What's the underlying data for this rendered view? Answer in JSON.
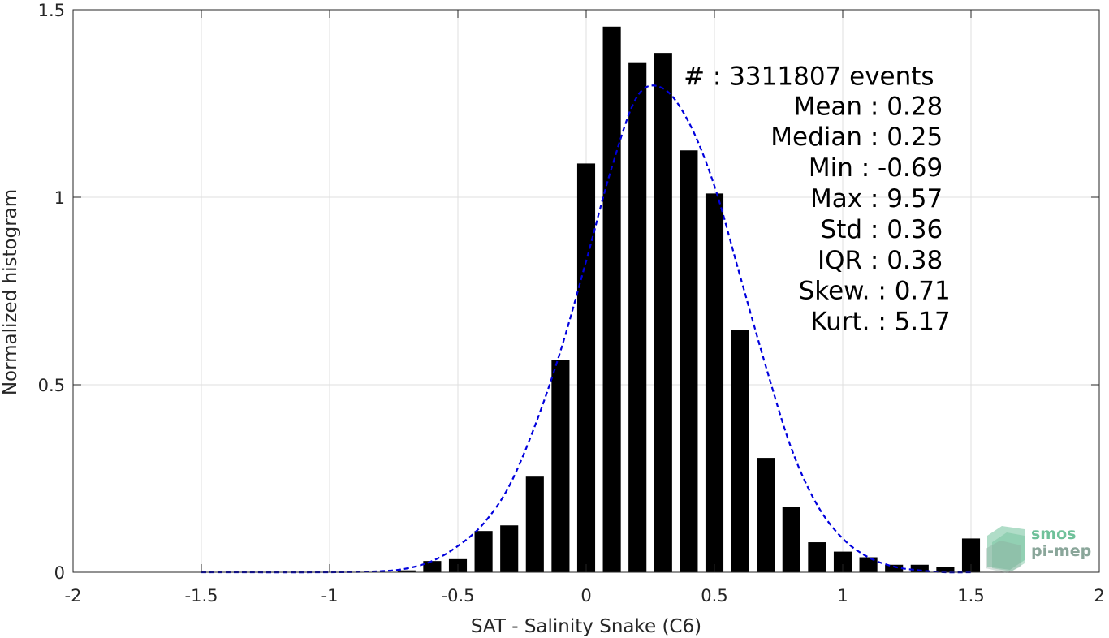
{
  "chart_data": {
    "type": "bar",
    "title": "",
    "xlabel": "SAT - Salinity Snake (C6)",
    "ylabel": "Normalized histogram",
    "xlim": [
      -2,
      2
    ],
    "ylim": [
      0,
      1.5
    ],
    "grid": true,
    "x_ticks": [
      -2,
      -1.5,
      -1,
      -0.5,
      0,
      0.5,
      1,
      1.5,
      2
    ],
    "x_tick_labels": [
      "-2",
      "-1.5",
      "-1",
      "-0.5",
      "0",
      "0.5",
      "1",
      "1.5",
      "2"
    ],
    "y_ticks": [
      0,
      0.5,
      1,
      1.5
    ],
    "y_tick_labels": [
      "0",
      "0.5",
      "1",
      "1.5"
    ],
    "bar_width": 0.07,
    "bar_color": "#000000",
    "bars": {
      "x": [
        -0.7,
        -0.6,
        -0.5,
        -0.4,
        -0.3,
        -0.2,
        -0.1,
        0.0,
        0.1,
        0.2,
        0.3,
        0.4,
        0.5,
        0.6,
        0.7,
        0.8,
        0.9,
        1.0,
        1.1,
        1.2,
        1.3,
        1.4,
        1.5
      ],
      "values": [
        0.005,
        0.03,
        0.035,
        0.11,
        0.125,
        0.255,
        0.565,
        1.09,
        1.455,
        1.36,
        1.385,
        1.125,
        1.01,
        0.645,
        0.305,
        0.175,
        0.08,
        0.055,
        0.04,
        0.02,
        0.02,
        0.015,
        0.09
      ]
    },
    "fit_curve": {
      "style": "dashed",
      "color": "#0000dd",
      "x": [
        -1.5,
        -1.0,
        -0.8,
        -0.7,
        -0.6,
        -0.5,
        -0.4,
        -0.3,
        -0.2,
        -0.1,
        0.0,
        0.1,
        0.2,
        0.3,
        0.4,
        0.5,
        0.6,
        0.7,
        0.8,
        0.9,
        1.0,
        1.1,
        1.2,
        1.3,
        1.4,
        1.5
      ],
      "y": [
        0.0,
        0.0,
        0.003,
        0.01,
        0.03,
        0.07,
        0.13,
        0.23,
        0.39,
        0.59,
        0.83,
        1.08,
        1.27,
        1.29,
        1.2,
        1.03,
        0.79,
        0.55,
        0.33,
        0.18,
        0.09,
        0.04,
        0.015,
        0.005,
        0.0,
        0.0
      ]
    },
    "annotations": [
      {
        "text": "#  : 3311807 events",
        "anchor": "start",
        "x": 0.38,
        "y": 1.3
      },
      {
        "text": "Mean : 0.28",
        "anchor": "end",
        "x": 1.39,
        "y": 1.22
      },
      {
        "text": "Median : 0.25",
        "anchor": "end",
        "x": 1.39,
        "y": 1.138
      },
      {
        "text": "Min : -0.69",
        "anchor": "end",
        "x": 1.39,
        "y": 1.056
      },
      {
        "text": "Max : 9.57",
        "anchor": "end",
        "x": 1.39,
        "y": 0.974
      },
      {
        "text": "Std : 0.36",
        "anchor": "end",
        "x": 1.39,
        "y": 0.892
      },
      {
        "text": "IQR : 0.38",
        "anchor": "end",
        "x": 1.39,
        "y": 0.81
      },
      {
        "text": "Skew. : 0.71",
        "anchor": "end",
        "x": 1.42,
        "y": 0.728
      },
      {
        "text": "Kurt. : 5.17",
        "anchor": "end",
        "x": 1.42,
        "y": 0.646
      }
    ]
  },
  "logo": {
    "line1": "smos",
    "line2": "pi-mep",
    "color_primary": "#6fc19a",
    "color_secondary": "#8aa69a"
  }
}
